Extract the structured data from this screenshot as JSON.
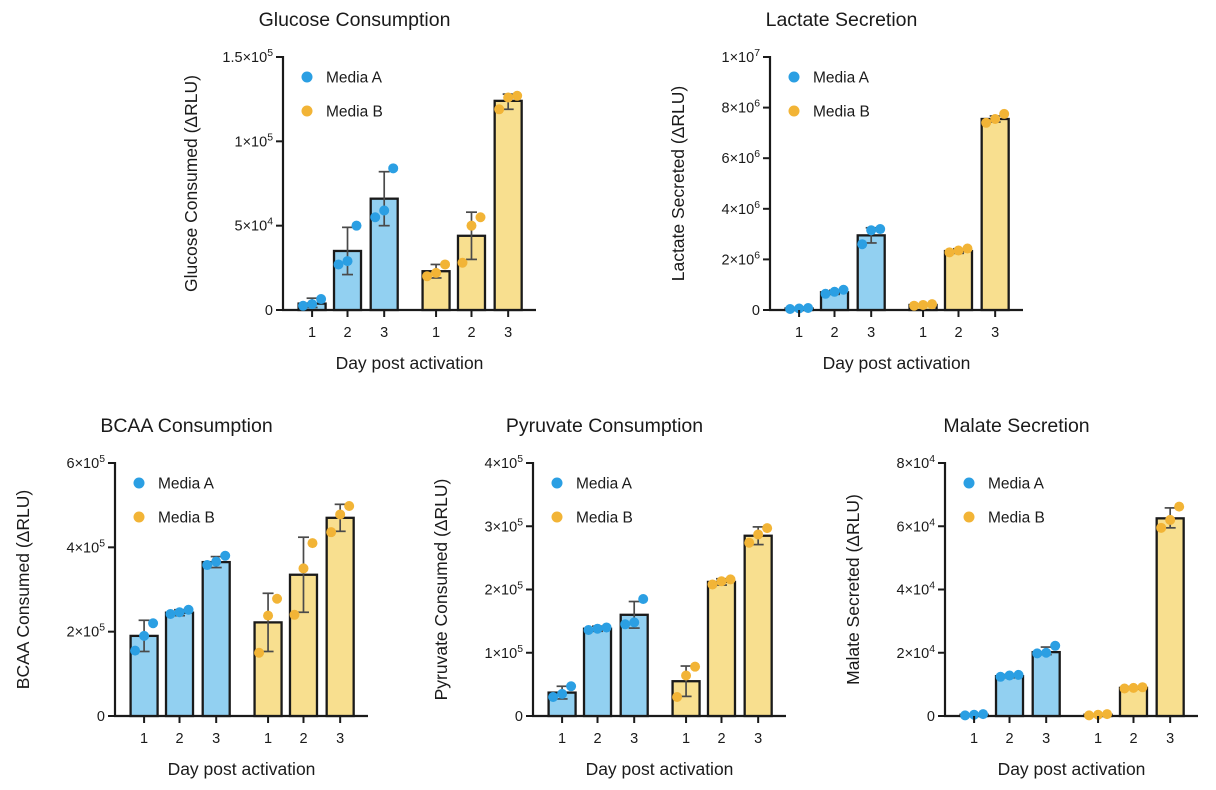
{
  "figure": {
    "background": "#ffffff"
  },
  "colors": {
    "media_a_point": "#2B9FE3",
    "media_a_fill": "#92D0F1",
    "media_b_point": "#F2B436",
    "media_b_fill": "#F8DF8F",
    "axis": "#1a1a1a",
    "error": "#4a4a4a",
    "text": "#1a1a1a"
  },
  "legend": {
    "items": [
      {
        "label": "Media A",
        "color_key": "media_a"
      },
      {
        "label": "Media B",
        "color_key": "media_b"
      }
    ]
  },
  "chart_data": [
    {
      "type": "bar",
      "title": "Glucose Consumption",
      "xlabel": "Day post activation",
      "ylabel": "Glucose Consumed (ΔRLU)",
      "ylim": [
        0,
        150000
      ],
      "grid": false,
      "legend_position": "top-left-inside",
      "yticks": [
        {
          "value": 0,
          "label": "0"
        },
        {
          "value": 50000,
          "label": "5×10^4"
        },
        {
          "value": 100000,
          "label": "1×10^5"
        },
        {
          "value": 150000,
          "label": "1.5×10^5"
        }
      ],
      "categories": [
        "1",
        "2",
        "3",
        "1",
        "2",
        "3"
      ],
      "series": [
        {
          "name": "Media A",
          "days": [
            "1",
            "2",
            "3"
          ],
          "bars": [
            {
              "mean": 3800,
              "err_low": 1500,
              "err_high": 7000,
              "points": [
                2500,
                3500,
                6500
              ]
            },
            {
              "mean": 35000,
              "err_low": 21000,
              "err_high": 49000,
              "points": [
                27000,
                29000,
                50000
              ]
            },
            {
              "mean": 66000,
              "err_low": 50000,
              "err_high": 82000,
              "points": [
                55000,
                59000,
                84000
              ]
            }
          ]
        },
        {
          "name": "Media B",
          "days": [
            "1",
            "2",
            "3"
          ],
          "bars": [
            {
              "mean": 23000,
              "err_low": 19000,
              "err_high": 27000,
              "points": [
                20000,
                22000,
                27000
              ]
            },
            {
              "mean": 44000,
              "err_low": 30000,
              "err_high": 58000,
              "points": [
                28000,
                50000,
                55000
              ]
            },
            {
              "mean": 124000,
              "err_low": 119000,
              "err_high": 128000,
              "points": [
                119000,
                126000,
                127000
              ]
            }
          ]
        }
      ]
    },
    {
      "type": "bar",
      "title": "Lactate Secretion",
      "xlabel": "Day post activation",
      "ylabel": "Lactate Secreted (ΔRLU)",
      "ylim": [
        0,
        10000000
      ],
      "grid": false,
      "legend_position": "top-left-inside",
      "yticks": [
        {
          "value": 0,
          "label": "0"
        },
        {
          "value": 2000000,
          "label": "2×10^6"
        },
        {
          "value": 4000000,
          "label": "4×10^6"
        },
        {
          "value": 6000000,
          "label": "6×10^6"
        },
        {
          "value": 8000000,
          "label": "8×10^6"
        },
        {
          "value": 10000000,
          "label": "1×10^7"
        }
      ],
      "categories": [
        "1",
        "2",
        "3",
        "1",
        "2",
        "3"
      ],
      "series": [
        {
          "name": "Media A",
          "days": [
            "1",
            "2",
            "3"
          ],
          "bars": [
            {
              "mean": 60000,
              "err_low": 40000,
              "err_high": 80000,
              "points": [
                40000,
                60000,
                80000
              ]
            },
            {
              "mean": 700000,
              "err_low": 620000,
              "err_high": 780000,
              "points": [
                640000,
                720000,
                800000
              ]
            },
            {
              "mean": 2950000,
              "err_low": 2650000,
              "err_high": 3250000,
              "points": [
                2600000,
                3150000,
                3200000
              ]
            }
          ]
        },
        {
          "name": "Media B",
          "days": [
            "1",
            "2",
            "3"
          ],
          "bars": [
            {
              "mean": 200000,
              "err_low": 170000,
              "err_high": 230000,
              "points": [
                170000,
                200000,
                230000
              ]
            },
            {
              "mean": 2330000,
              "err_low": 2240000,
              "err_high": 2420000,
              "points": [
                2280000,
                2350000,
                2430000
              ]
            },
            {
              "mean": 7550000,
              "err_low": 7430000,
              "err_high": 7670000,
              "points": [
                7400000,
                7550000,
                7750000
              ]
            }
          ]
        }
      ]
    },
    {
      "type": "bar",
      "title": "BCAA Consumption",
      "xlabel": "Day post activation",
      "ylabel": "BCAA Consumed (ΔRLU)",
      "ylim": [
        0,
        600000
      ],
      "grid": false,
      "legend_position": "top-left-inside",
      "yticks": [
        {
          "value": 0,
          "label": "0"
        },
        {
          "value": 200000,
          "label": "2×10^5"
        },
        {
          "value": 400000,
          "label": "4×10^5"
        },
        {
          "value": 600000,
          "label": "6×10^5"
        }
      ],
      "categories": [
        "1",
        "2",
        "3",
        "1",
        "2",
        "3"
      ],
      "series": [
        {
          "name": "Media A",
          "days": [
            "1",
            "2",
            "3"
          ],
          "bars": [
            {
              "mean": 190000,
              "err_low": 153000,
              "err_high": 227000,
              "points": [
                155000,
                190000,
                220000
              ]
            },
            {
              "mean": 245000,
              "err_low": 238000,
              "err_high": 252000,
              "points": [
                242000,
                246000,
                252000
              ]
            },
            {
              "mean": 365000,
              "err_low": 352000,
              "err_high": 378000,
              "points": [
                358000,
                366000,
                380000
              ]
            }
          ]
        },
        {
          "name": "Media B",
          "days": [
            "1",
            "2",
            "3"
          ],
          "bars": [
            {
              "mean": 222000,
              "err_low": 153000,
              "err_high": 291000,
              "points": [
                150000,
                238000,
                278000
              ]
            },
            {
              "mean": 335000,
              "err_low": 246000,
              "err_high": 424000,
              "points": [
                240000,
                350000,
                410000
              ]
            },
            {
              "mean": 470000,
              "err_low": 438000,
              "err_high": 502000,
              "points": [
                436000,
                478000,
                498000
              ]
            }
          ]
        }
      ]
    },
    {
      "type": "bar",
      "title": "Pyruvate Consumption",
      "xlabel": "Day post activation",
      "ylabel": "Pyruvate Consumed (ΔRLU)",
      "ylim": [
        0,
        400000
      ],
      "grid": false,
      "legend_position": "top-left-inside",
      "yticks": [
        {
          "value": 0,
          "label": "0"
        },
        {
          "value": 100000,
          "label": "1×10^5"
        },
        {
          "value": 200000,
          "label": "2×10^5"
        },
        {
          "value": 300000,
          "label": "3×10^5"
        },
        {
          "value": 400000,
          "label": "4×10^5"
        }
      ],
      "categories": [
        "1",
        "2",
        "3",
        "1",
        "2",
        "3"
      ],
      "series": [
        {
          "name": "Media A",
          "days": [
            "1",
            "2",
            "3"
          ],
          "bars": [
            {
              "mean": 37000,
              "err_low": 27000,
              "err_high": 47000,
              "points": [
                30000,
                35000,
                47000
              ]
            },
            {
              "mean": 138000,
              "err_low": 134000,
              "err_high": 142000,
              "points": [
                136000,
                138000,
                140000
              ]
            },
            {
              "mean": 160000,
              "err_low": 139000,
              "err_high": 181000,
              "points": [
                145000,
                148000,
                185000
              ]
            }
          ]
        },
        {
          "name": "Media B",
          "days": [
            "1",
            "2",
            "3"
          ],
          "bars": [
            {
              "mean": 55000,
              "err_low": 31000,
              "err_high": 79000,
              "points": [
                30000,
                64000,
                78000
              ]
            },
            {
              "mean": 212000,
              "err_low": 207000,
              "err_high": 217000,
              "points": [
                208000,
                213000,
                216000
              ]
            },
            {
              "mean": 285000,
              "err_low": 271000,
              "err_high": 299000,
              "points": [
                274000,
                287000,
                297000
              ]
            }
          ]
        }
      ]
    },
    {
      "type": "bar",
      "title": "Malate Secretion",
      "xlabel": "Day post activation",
      "ylabel": "Malate Secreted (ΔRLU)",
      "ylim": [
        0,
        80000
      ],
      "grid": false,
      "legend_position": "top-left-inside",
      "yticks": [
        {
          "value": 0,
          "label": "0"
        },
        {
          "value": 20000,
          "label": "2×10^4"
        },
        {
          "value": 40000,
          "label": "4×10^4"
        },
        {
          "value": 60000,
          "label": "6×10^4"
        },
        {
          "value": 80000,
          "label": "8×10^4"
        }
      ],
      "categories": [
        "1",
        "2",
        "3",
        "1",
        "2",
        "3"
      ],
      "series": [
        {
          "name": "Media A",
          "days": [
            "1",
            "2",
            "3"
          ],
          "bars": [
            {
              "mean": 400,
              "err_low": 200,
              "err_high": 600,
              "points": [
                200,
                400,
                600
              ]
            },
            {
              "mean": 12600,
              "err_low": 12100,
              "err_high": 13100,
              "points": [
                12400,
                12800,
                13000
              ]
            },
            {
              "mean": 20200,
              "err_low": 19400,
              "err_high": 21800,
              "points": [
                19800,
                20000,
                22200
              ]
            }
          ]
        },
        {
          "name": "Media B",
          "days": [
            "1",
            "2",
            "3"
          ],
          "bars": [
            {
              "mean": 400,
              "err_low": 200,
              "err_high": 600,
              "points": [
                200,
                400,
                600
              ]
            },
            {
              "mean": 8900,
              "err_low": 8500,
              "err_high": 9300,
              "points": [
                8700,
                8900,
                9100
              ]
            },
            {
              "mean": 62500,
              "err_low": 59500,
              "err_high": 65800,
              "points": [
                59500,
                62000,
                66200
              ]
            }
          ]
        }
      ]
    }
  ]
}
